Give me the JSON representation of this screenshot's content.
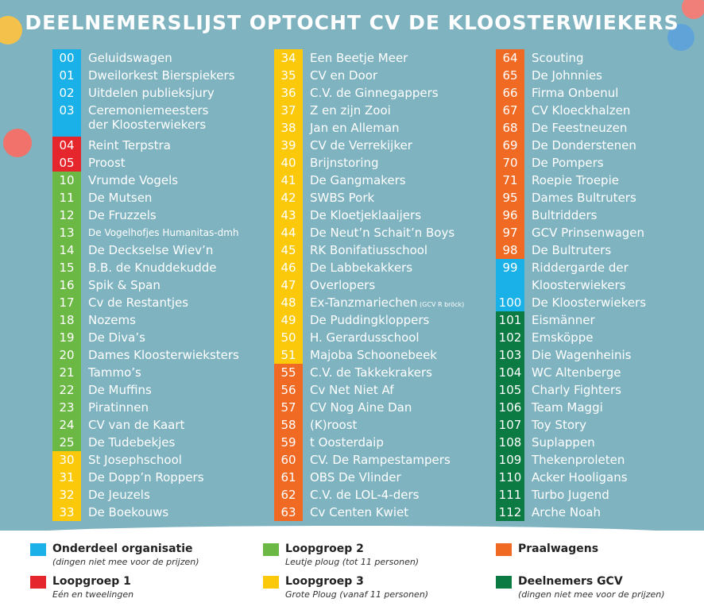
{
  "title": "DEELNEMERSLIJST OPTOCHT CV DE KLOOSTERWIEKERS",
  "colors": {
    "blue": "#1ab0e8",
    "red": "#e5262c",
    "green": "#6bb844",
    "yellow": "#fcc90a",
    "orange": "#f06a24",
    "darkgreen": "#0c7a43"
  },
  "columns": [
    [
      {
        "num": "00",
        "name": "Geluidswagen",
        "cat": "blue"
      },
      {
        "num": "01",
        "name": "Dweilorkest Bierspiekers",
        "cat": "blue"
      },
      {
        "num": "02",
        "name": "Uitdelen publieksjury",
        "cat": "blue"
      },
      {
        "num": "03",
        "name": "Ceremoniemeesters",
        "name2": "der Kloosterwiekers",
        "cat": "blue"
      },
      {
        "num": "04",
        "name": "Reint Terpstra",
        "cat": "red"
      },
      {
        "num": "05",
        "name": "Proost",
        "cat": "red"
      },
      {
        "num": "10",
        "name": "Vrumde Vogels",
        "cat": "green"
      },
      {
        "num": "11",
        "name": "De Mutsen",
        "cat": "green"
      },
      {
        "num": "12",
        "name": "De Fruzzels",
        "cat": "green"
      },
      {
        "num": "13",
        "name": "De Vogelhofjes Humanitas-dmh",
        "cat": "green",
        "small": true
      },
      {
        "num": "14",
        "name": "De Deckselse Wiev’n",
        "cat": "green"
      },
      {
        "num": "15",
        "name": "B.B. de Knuddekudde",
        "cat": "green"
      },
      {
        "num": "16",
        "name": "Spik & Span",
        "cat": "green"
      },
      {
        "num": "17",
        "name": "Cv de Restantjes",
        "cat": "green"
      },
      {
        "num": "18",
        "name": "Nozems",
        "cat": "green"
      },
      {
        "num": "19",
        "name": "De Diva’s",
        "cat": "green"
      },
      {
        "num": "20",
        "name": "Dames Kloosterwieksters",
        "cat": "green"
      },
      {
        "num": "21",
        "name": "Tammo’s",
        "cat": "green"
      },
      {
        "num": "22",
        "name": "De Muffins",
        "cat": "green"
      },
      {
        "num": "23",
        "name": "Piratinnen",
        "cat": "green"
      },
      {
        "num": "24",
        "name": "CV van de Kaart",
        "cat": "green"
      },
      {
        "num": "25",
        "name": "De Tudebekjes",
        "cat": "green"
      },
      {
        "num": "30",
        "name": "St Josephschool",
        "cat": "yellow"
      },
      {
        "num": "31",
        "name": "De Dopp’n Roppers",
        "cat": "yellow"
      },
      {
        "num": "32",
        "name": "De Jeuzels",
        "cat": "yellow"
      },
      {
        "num": "33",
        "name": "De Boekouws",
        "cat": "yellow"
      }
    ],
    [
      {
        "num": "34",
        "name": "Een Beetje Meer",
        "cat": "yellow"
      },
      {
        "num": "35",
        "name": "CV en Door",
        "cat": "yellow"
      },
      {
        "num": "36",
        "name": "C.V. de Ginnegappers",
        "cat": "yellow"
      },
      {
        "num": "37",
        "name": "Z en zijn Zooi",
        "cat": "yellow"
      },
      {
        "num": "38",
        "name": "Jan en Alleman",
        "cat": "yellow"
      },
      {
        "num": "39",
        "name": "CV de Verrekijker",
        "cat": "yellow"
      },
      {
        "num": "40",
        "name": "Brijnstoring",
        "cat": "yellow"
      },
      {
        "num": "41",
        "name": "De Gangmakers",
        "cat": "yellow"
      },
      {
        "num": "42",
        "name": "SWBS Pork",
        "cat": "yellow"
      },
      {
        "num": "43",
        "name": "De Kloetjeklaaijers",
        "cat": "yellow"
      },
      {
        "num": "44",
        "name": "De Neut’n Schait’n Boys",
        "cat": "yellow"
      },
      {
        "num": "45",
        "name": "RK Bonifatiusschool",
        "cat": "yellow"
      },
      {
        "num": "46",
        "name": "De Labbekakkers",
        "cat": "yellow"
      },
      {
        "num": "47",
        "name": "Overlopers",
        "cat": "yellow"
      },
      {
        "num": "48",
        "name": "Ex-Tanzmariechen",
        "note": "(GCV R bröck)",
        "cat": "yellow"
      },
      {
        "num": "49",
        "name": "De Puddingkloppers",
        "cat": "yellow"
      },
      {
        "num": "50",
        "name": "H. Gerardusschool",
        "cat": "yellow"
      },
      {
        "num": "51",
        "name": "Majoba Schoonebeek",
        "cat": "yellow"
      },
      {
        "num": "55",
        "name": "C.V. de Takkekrakers",
        "cat": "orange"
      },
      {
        "num": "56",
        "name": "Cv Net Niet Af",
        "cat": "orange"
      },
      {
        "num": "57",
        "name": "CV Nog Aine Dan",
        "cat": "orange"
      },
      {
        "num": "58",
        "name": "(K)roost",
        "cat": "orange"
      },
      {
        "num": "59",
        "name": "t Oosterdaip",
        "cat": "orange"
      },
      {
        "num": "60",
        "name": "CV. De Rampestampers",
        "cat": "orange"
      },
      {
        "num": "61",
        "name": "OBS De Vlinder",
        "cat": "orange"
      },
      {
        "num": "62",
        "name": "C.V. de LOL-4-ders",
        "cat": "orange"
      },
      {
        "num": "63",
        "name": "Cv Centen Kwiet",
        "cat": "orange"
      }
    ],
    [
      {
        "num": "64",
        "name": "Scouting",
        "cat": "orange"
      },
      {
        "num": "65",
        "name": "De Johnnies",
        "cat": "orange"
      },
      {
        "num": "66",
        "name": "Firma Onbenul",
        "cat": "orange"
      },
      {
        "num": "67",
        "name": "CV Kloeckhalzen",
        "cat": "orange"
      },
      {
        "num": "68",
        "name": "De Feestneuzen",
        "cat": "orange"
      },
      {
        "num": "69",
        "name": "De Donderstenen",
        "cat": "orange"
      },
      {
        "num": "70",
        "name": "De Pompers",
        "cat": "orange"
      },
      {
        "num": "71",
        "name": "Roepie Troepie",
        "cat": "orange"
      },
      {
        "num": "95",
        "name": "Dames Bultruters",
        "cat": "orange"
      },
      {
        "num": "96",
        "name": "Bultridders",
        "cat": "orange"
      },
      {
        "num": "97",
        "name": "GCV Prinsenwagen",
        "cat": "orange"
      },
      {
        "num": "98",
        "name": "De Bultruters",
        "cat": "orange"
      },
      {
        "num": "99",
        "name": "Riddergarde der",
        "cat": "blue"
      },
      {
        "num": "",
        "name": "Kloosterwiekers",
        "cat": "blue"
      },
      {
        "num": "100",
        "name": "De Kloosterwiekers",
        "cat": "blue"
      },
      {
        "num": "101",
        "name": "Eismänner",
        "cat": "darkgreen"
      },
      {
        "num": "102",
        "name": "Emsköppe",
        "cat": "darkgreen"
      },
      {
        "num": "103",
        "name": "Die Wagenheinis",
        "cat": "darkgreen"
      },
      {
        "num": "104",
        "name": "WC Altenberge",
        "cat": "darkgreen"
      },
      {
        "num": "105",
        "name": "Charly Fighters",
        "cat": "darkgreen"
      },
      {
        "num": "106",
        "name": "Team Maggi",
        "cat": "darkgreen"
      },
      {
        "num": "107",
        "name": "Toy Story",
        "cat": "darkgreen"
      },
      {
        "num": "108",
        "name": "Suplappen",
        "cat": "darkgreen"
      },
      {
        "num": "109",
        "name": "Thekenproleten",
        "cat": "darkgreen"
      },
      {
        "num": "110",
        "name": "Acker Hooligans",
        "cat": "darkgreen"
      },
      {
        "num": "111",
        "name": "Turbo Jugend",
        "cat": "darkgreen"
      },
      {
        "num": "112",
        "name": "Arche Noah",
        "cat": "darkgreen"
      }
    ]
  ],
  "legend": [
    {
      "title": "Onderdeel organisatie",
      "sub": "(dingen niet mee voor de prijzen)",
      "cat": "blue"
    },
    {
      "title": "Loopgroep 2",
      "sub": "Leutje ploug (tot 11 personen)",
      "cat": "green"
    },
    {
      "title": "Praalwagens",
      "sub": "",
      "cat": "orange"
    },
    {
      "title": "Loopgroep 1",
      "sub": "Eén en tweelingen",
      "cat": "red"
    },
    {
      "title": "Loopgroep 3",
      "sub": "Grote Ploug (vanaf 11 personen)",
      "cat": "yellow"
    },
    {
      "title": "Deelnemers GCV",
      "sub": "(dingen niet mee voor de prijzen)",
      "cat": "darkgreen"
    }
  ]
}
